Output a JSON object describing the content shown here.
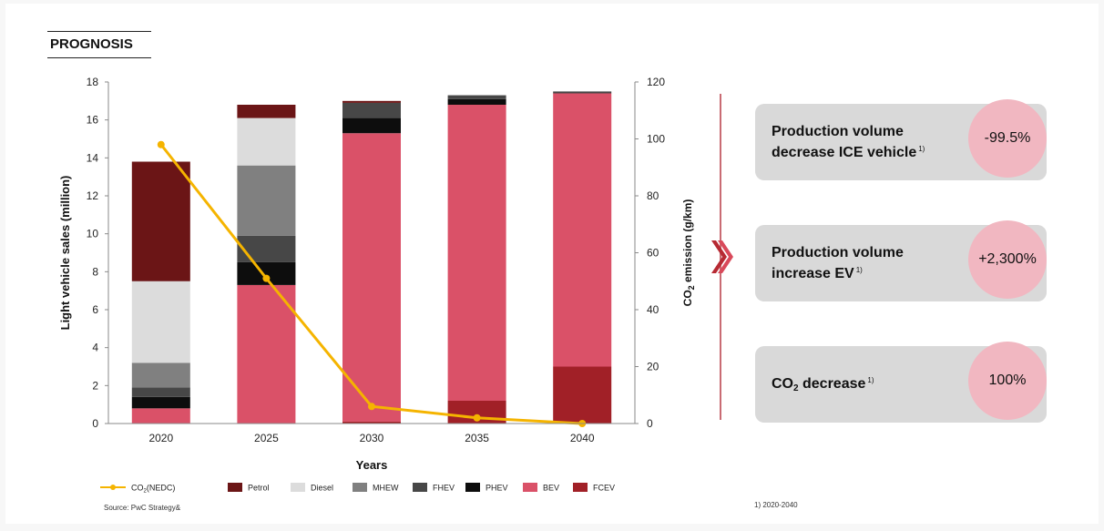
{
  "header": {
    "title": "PROGNOSIS"
  },
  "chart_data": {
    "type": "bar",
    "stacked": true,
    "categories": [
      "2020",
      "2025",
      "2030",
      "2035",
      "2040"
    ],
    "xlabel": "Years",
    "ylabel": "Light vehicle sales (million)",
    "ylim": [
      0,
      18
    ],
    "yticks": [
      "0",
      "2",
      "4",
      "6",
      "8",
      "10",
      "12",
      "14",
      "16",
      "18"
    ],
    "y2label_pre": "CO",
    "y2label_sub": "2",
    "y2label_post": " emission (g/km)",
    "y2lim": [
      0,
      120
    ],
    "y2ticks": [
      "0",
      "20",
      "40",
      "60",
      "80",
      "100",
      "120"
    ],
    "series": [
      {
        "name": "FCEV",
        "color": "#a12027",
        "values": [
          0,
          0,
          0.1,
          1.2,
          3.0
        ]
      },
      {
        "name": "BEV",
        "color": "#da5168",
        "values": [
          0.8,
          7.3,
          15.2,
          15.6,
          14.4
        ]
      },
      {
        "name": "PHEV",
        "color": "#0d0d0d",
        "values": [
          0.6,
          1.2,
          0.8,
          0.3,
          0
        ]
      },
      {
        "name": "FHEV",
        "color": "#474747",
        "values": [
          0.5,
          1.4,
          0.8,
          0.2,
          0.1
        ]
      },
      {
        "name": "MHEW",
        "color": "#808080",
        "values": [
          1.3,
          3.7,
          0,
          0,
          0
        ]
      },
      {
        "name": "Diesel",
        "color": "#dcdcdc",
        "values": [
          4.3,
          2.5,
          0,
          0,
          0
        ]
      },
      {
        "name": "Petrol",
        "color": "#6b1516",
        "values": [
          6.3,
          0.7,
          0.1,
          0,
          0
        ]
      }
    ],
    "line": {
      "name_pre": "CO",
      "name_sub": "2",
      "name_post": "(NEDC)",
      "color": "#f5b400",
      "axis": "right",
      "values": [
        98,
        51,
        6,
        2,
        0
      ]
    },
    "legend_order": [
      "Petrol",
      "Diesel",
      "MHEW",
      "FHEV",
      "PHEV",
      "BEV",
      "FCEV"
    ],
    "legend_position": "bottom",
    "grid": false
  },
  "cards": [
    {
      "text_line1": "Production volume",
      "text_line2": "decrease ICE vehicle",
      "note": "1)",
      "value": "-99.5%"
    },
    {
      "text_line1": "Production volume",
      "text_line2": "increase EV",
      "note": "1)",
      "value": "+2,300%"
    },
    {
      "text_pre": "CO",
      "text_sub": "2",
      "text_post": " decrease",
      "note": "1)",
      "value": "100%"
    }
  ],
  "source": "Source: PwC Strategy&",
  "footnote": "1) 2020-2040"
}
